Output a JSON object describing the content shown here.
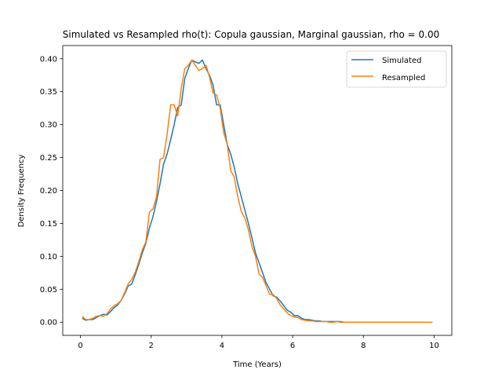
{
  "chart_data": {
    "type": "line",
    "title": "Simulated vs Resampled rho(t): Copula gaussian, Marginal gaussian, rho =  0.00",
    "xlabel": "Time (Years)",
    "ylabel": "Density Frequency",
    "xlim": [
      -0.5,
      10.5
    ],
    "ylim": [
      -0.02,
      0.42
    ],
    "xticks": [
      0,
      2,
      4,
      6,
      8,
      10
    ],
    "xtick_labels": [
      "0",
      "2",
      "4",
      "6",
      "8",
      "10"
    ],
    "yticks": [
      0.0,
      0.05,
      0.1,
      0.15,
      0.2,
      0.25,
      0.3,
      0.35,
      0.4
    ],
    "ytick_labels": [
      "0.00",
      "0.05",
      "0.10",
      "0.15",
      "0.20",
      "0.25",
      "0.30",
      "0.35",
      "0.40"
    ],
    "grid": false,
    "legend_position": "top-right",
    "series": [
      {
        "name": "Simulated",
        "color": "#1f77b4",
        "x": [
          0.05,
          0.15,
          0.25,
          0.35,
          0.45,
          0.55,
          0.65,
          0.75,
          0.85,
          0.95,
          1.05,
          1.15,
          1.25,
          1.35,
          1.45,
          1.55,
          1.65,
          1.75,
          1.85,
          1.95,
          2.05,
          2.15,
          2.25,
          2.35,
          2.45,
          2.55,
          2.65,
          2.75,
          2.85,
          2.95,
          3.05,
          3.15,
          3.25,
          3.35,
          3.45,
          3.55,
          3.65,
          3.75,
          3.85,
          3.95,
          4.05,
          4.15,
          4.25,
          4.35,
          4.45,
          4.55,
          4.65,
          4.75,
          4.85,
          4.95,
          5.05,
          5.15,
          5.25,
          5.35,
          5.45,
          5.55,
          5.65,
          5.75,
          5.85,
          5.95,
          6.05,
          6.15,
          6.25,
          6.35,
          6.45,
          6.55,
          6.65,
          6.75,
          6.85,
          6.95,
          7.05,
          7.15,
          7.25,
          7.35,
          7.45,
          7.55,
          7.65,
          7.75,
          7.85,
          7.95,
          8.05,
          8.15,
          8.25,
          8.35,
          8.45,
          8.55,
          8.65,
          8.75,
          8.85,
          8.95,
          9.05,
          9.15,
          9.25,
          9.35,
          9.45,
          9.55,
          9.65,
          9.75,
          9.85,
          9.95
        ],
        "values": [
          0.006,
          0.003,
          0.004,
          0.004,
          0.007,
          0.01,
          0.012,
          0.011,
          0.016,
          0.022,
          0.026,
          0.033,
          0.043,
          0.055,
          0.058,
          0.072,
          0.088,
          0.105,
          0.12,
          0.143,
          0.16,
          0.183,
          0.21,
          0.24,
          0.255,
          0.277,
          0.3,
          0.326,
          0.33,
          0.37,
          0.385,
          0.398,
          0.395,
          0.393,
          0.398,
          0.385,
          0.375,
          0.36,
          0.33,
          0.33,
          0.3,
          0.27,
          0.255,
          0.235,
          0.21,
          0.19,
          0.17,
          0.15,
          0.128,
          0.105,
          0.09,
          0.075,
          0.06,
          0.05,
          0.04,
          0.038,
          0.032,
          0.025,
          0.018,
          0.015,
          0.01,
          0.01,
          0.006,
          0.004,
          0.004,
          0.003,
          0.002,
          0.002,
          0.001,
          0.001,
          0.001,
          0.001,
          0.001,
          0.001,
          0.0,
          0.0,
          0.0,
          0.0,
          0.0,
          0.0,
          0.0,
          0.0,
          0.0,
          0.0,
          0.0,
          0.0,
          0.0,
          0.0,
          0.0,
          0.0,
          0.0,
          0.0,
          0.0,
          0.0,
          0.0,
          0.0,
          0.0,
          0.0,
          0.0,
          0.0
        ]
      },
      {
        "name": "Resampled",
        "color": "#ff7f0e",
        "x": [
          0.05,
          0.15,
          0.25,
          0.35,
          0.45,
          0.55,
          0.65,
          0.75,
          0.85,
          0.95,
          1.05,
          1.15,
          1.25,
          1.35,
          1.45,
          1.55,
          1.65,
          1.75,
          1.85,
          1.95,
          2.05,
          2.15,
          2.25,
          2.35,
          2.45,
          2.55,
          2.65,
          2.75,
          2.85,
          2.95,
          3.05,
          3.15,
          3.25,
          3.35,
          3.45,
          3.55,
          3.65,
          3.75,
          3.85,
          3.95,
          4.05,
          4.15,
          4.25,
          4.35,
          4.45,
          4.55,
          4.65,
          4.75,
          4.85,
          4.95,
          5.05,
          5.15,
          5.25,
          5.35,
          5.45,
          5.55,
          5.65,
          5.75,
          5.85,
          5.95,
          6.05,
          6.15,
          6.25,
          6.35,
          6.45,
          6.55,
          6.65,
          6.75,
          6.85,
          6.95,
          7.05,
          7.15,
          7.25,
          7.35,
          7.45,
          7.55,
          7.65,
          7.75,
          7.85,
          7.95,
          8.05,
          8.15,
          8.25,
          8.35,
          8.45,
          8.55,
          8.65,
          8.75,
          8.85,
          8.95,
          9.05,
          9.15,
          9.25,
          9.35,
          9.45,
          9.55,
          9.65,
          9.75,
          9.85,
          9.95
        ],
        "values": [
          0.009,
          0.004,
          0.004,
          0.006,
          0.009,
          0.01,
          0.009,
          0.013,
          0.02,
          0.025,
          0.028,
          0.033,
          0.045,
          0.058,
          0.065,
          0.076,
          0.092,
          0.11,
          0.122,
          0.167,
          0.172,
          0.19,
          0.247,
          0.25,
          0.285,
          0.33,
          0.33,
          0.313,
          0.355,
          0.385,
          0.39,
          0.398,
          0.39,
          0.382,
          0.385,
          0.39,
          0.372,
          0.348,
          0.345,
          0.325,
          0.288,
          0.27,
          0.23,
          0.22,
          0.19,
          0.168,
          0.158,
          0.14,
          0.115,
          0.1,
          0.073,
          0.068,
          0.055,
          0.042,
          0.042,
          0.036,
          0.026,
          0.02,
          0.014,
          0.01,
          0.008,
          0.007,
          0.004,
          0.003,
          0.002,
          0.002,
          0.001,
          0.001,
          0.001,
          0.001,
          0.0,
          0.0,
          0.001,
          0.0,
          0.0,
          0.0,
          0.0,
          0.0,
          0.0,
          0.0,
          0.0,
          0.0,
          0.0,
          0.0,
          0.0,
          0.0,
          0.0,
          0.0,
          0.0,
          0.0,
          0.0,
          0.0,
          0.0,
          0.0,
          0.0,
          0.0,
          0.0,
          0.0,
          0.0,
          0.0
        ]
      }
    ]
  }
}
